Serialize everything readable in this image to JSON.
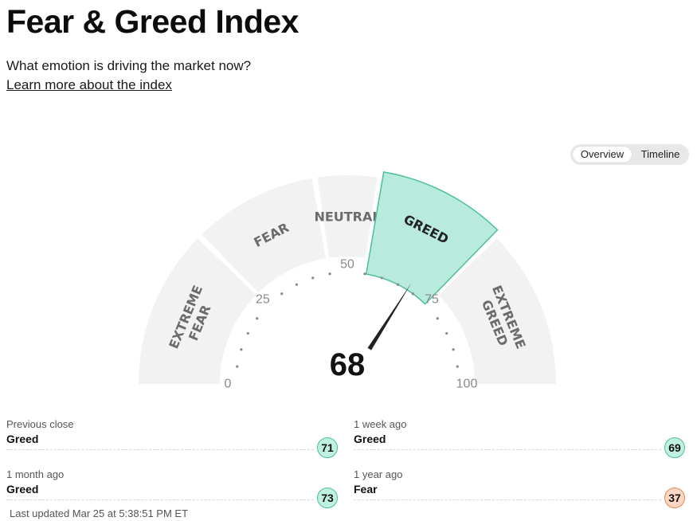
{
  "header": {
    "title": "Fear & Greed Index",
    "subtitle": "What emotion is driving the market now?",
    "learn_more": "Learn more about the index"
  },
  "view_toggle": {
    "options": [
      "Overview",
      "Timeline"
    ],
    "selected": "Overview"
  },
  "gauge": {
    "value": "68",
    "value_number": 68,
    "min": 0,
    "max": 100,
    "scale_labels": [
      "0",
      "25",
      "50",
      "75",
      "100"
    ],
    "segments": [
      {
        "name": "EXTREME FEAR",
        "lines": [
          "EXTREME",
          "FEAR"
        ],
        "from": 0,
        "to": 25
      },
      {
        "name": "FEAR",
        "lines": [
          "FEAR"
        ],
        "from": 25,
        "to": 45
      },
      {
        "name": "NEUTRAL",
        "lines": [
          "NEUTRAL"
        ],
        "from": 45,
        "to": 55
      },
      {
        "name": "GREED",
        "lines": [
          "GREED"
        ],
        "from": 55,
        "to": 75
      },
      {
        "name": "EXTREME GREED",
        "lines": [
          "EXTREME",
          "GREED"
        ],
        "from": 75,
        "to": 100
      }
    ],
    "active_segment": "GREED",
    "colors": {
      "segment": "#f2f2f2",
      "active": "#b8ebde",
      "active_border": "#4cbf9a",
      "needle": "#222222",
      "track": "#f4f4f4"
    }
  },
  "stats": [
    {
      "label": "Previous close",
      "rating": "Greed",
      "value": "71"
    },
    {
      "label": "1 week ago",
      "rating": "Greed",
      "value": "69"
    },
    {
      "label": "1 month ago",
      "rating": "Greed",
      "value": "73"
    },
    {
      "label": "1 year ago",
      "rating": "Fear",
      "value": "37"
    }
  ],
  "rating_colors": {
    "Greed": {
      "bg": "#bff0e1",
      "border": "#4cbf9a"
    },
    "Fear": {
      "bg": "#fbd6c2",
      "border": "#e4894f"
    }
  },
  "last_updated": "Last updated Mar 25 at 5:38:51 PM ET"
}
